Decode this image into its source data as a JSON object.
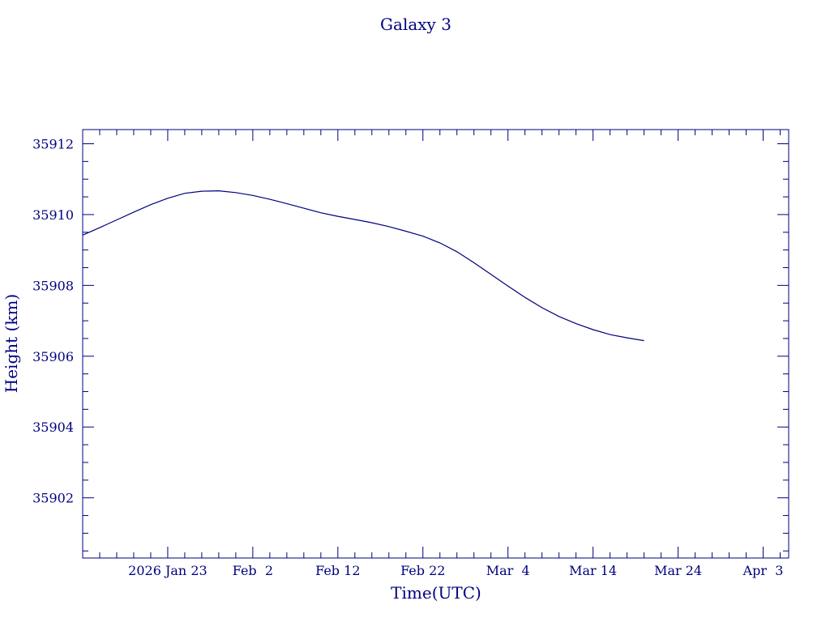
{
  "chart_data": {
    "type": "line",
    "title": "Galaxy 3",
    "xlabel": "Time(UTC)",
    "ylabel": "Height (km)",
    "x_ticks": [
      {
        "date": "2026-01-23",
        "label": "2026 Jan 23"
      },
      {
        "date": "2026-02-02",
        "label": "Feb  2"
      },
      {
        "date": "2026-02-12",
        "label": "Feb 12"
      },
      {
        "date": "2026-02-22",
        "label": "Feb 22"
      },
      {
        "date": "2026-03-04",
        "label": "Mar  4"
      },
      {
        "date": "2026-03-14",
        "label": "Mar 14"
      },
      {
        "date": "2026-03-24",
        "label": "Mar 24"
      },
      {
        "date": "2026-04-03",
        "label": "Apr  3"
      }
    ],
    "y_ticks": [
      35902,
      35904,
      35906,
      35908,
      35910,
      35912
    ],
    "xlim": [
      "2026-01-13T00:00",
      "2026-04-06T00:00"
    ],
    "ylim": [
      35900.3,
      35912.4
    ],
    "grid": false,
    "series": [
      {
        "x": [
          "2026-01-13",
          "2026-01-15",
          "2026-01-17",
          "2026-01-19",
          "2026-01-21",
          "2026-01-23",
          "2026-01-25",
          "2026-01-27",
          "2026-01-29",
          "2026-01-31",
          "2026-02-02",
          "2026-02-04",
          "2026-02-06",
          "2026-02-08",
          "2026-02-10",
          "2026-02-12",
          "2026-02-14",
          "2026-02-16",
          "2026-02-18",
          "2026-02-20",
          "2026-02-22",
          "2026-02-24",
          "2026-02-26",
          "2026-02-28",
          "2026-03-02",
          "2026-03-04",
          "2026-03-06",
          "2026-03-08",
          "2026-03-10",
          "2026-03-12",
          "2026-03-14",
          "2026-03-16",
          "2026-03-18",
          "2026-03-20"
        ],
        "y": [
          35909.42,
          35909.63,
          35909.85,
          35910.07,
          35910.28,
          35910.46,
          35910.6,
          35910.66,
          35910.67,
          35910.62,
          35910.54,
          35910.43,
          35910.31,
          35910.18,
          35910.05,
          35909.95,
          35909.86,
          35909.77,
          35909.66,
          35909.53,
          35909.39,
          35909.2,
          35908.95,
          35908.64,
          35908.31,
          35907.98,
          35907.66,
          35907.37,
          35907.12,
          35906.92,
          35906.75,
          35906.61,
          35906.52,
          35906.44
        ]
      }
    ]
  }
}
